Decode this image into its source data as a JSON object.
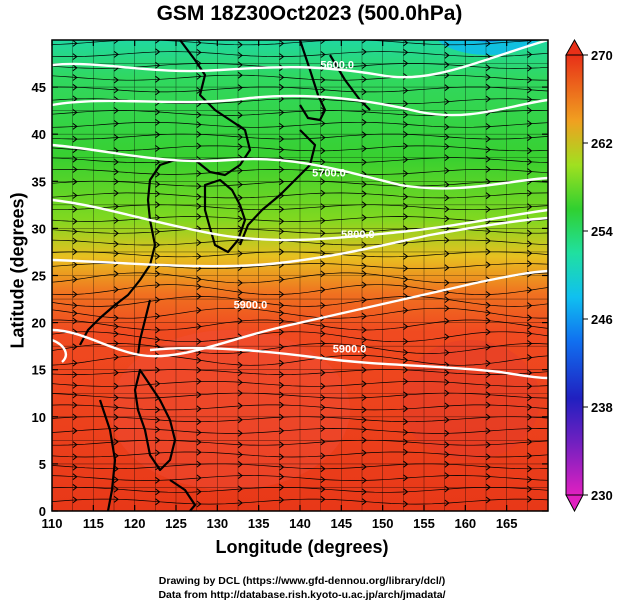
{
  "title": "GSM 18Z30Oct2023 (500.0hPa)",
  "x_axis": {
    "label": "Longitude (degrees)",
    "ticks": [
      "110",
      "115",
      "120",
      "125",
      "130",
      "135",
      "140",
      "145",
      "150",
      "155",
      "160",
      "165"
    ],
    "range": [
      110,
      170
    ]
  },
  "y_axis": {
    "label": "Latitude  (degrees)",
    "ticks": [
      "0",
      "5",
      "10",
      "15",
      "20",
      "25",
      "30",
      "35",
      "40",
      "45"
    ],
    "range": [
      0,
      50
    ]
  },
  "colorbar": {
    "ticks": [
      "230",
      "238",
      "246",
      "254",
      "262",
      "270"
    ],
    "range": [
      230,
      270
    ],
    "colors": [
      "#e020c0",
      "#2020c0",
      "#10a0f0",
      "#20e0c0",
      "#30d030",
      "#a0e020",
      "#f0a020",
      "#f04020",
      "#e83018"
    ]
  },
  "contours": [
    {
      "label": "5600.0",
      "lon": 144.5,
      "lat": 47.0
    },
    {
      "label": "5700.0",
      "lon": 143.5,
      "lat": 35.5
    },
    {
      "label": "5800.0",
      "lon": 147.0,
      "lat": 29.0
    },
    {
      "label": "5900.0",
      "lon": 134.0,
      "lat": 21.5
    },
    {
      "label": "5900.0",
      "lon": 146.0,
      "lat": 16.8
    }
  ],
  "credits": {
    "line1": "Drawing by DCL (https://www.gfd-dennou.org/library/dcl/)",
    "line2": "Data from http://database.rish.kyoto-u.ac.jp/arch/jmadata/"
  }
}
